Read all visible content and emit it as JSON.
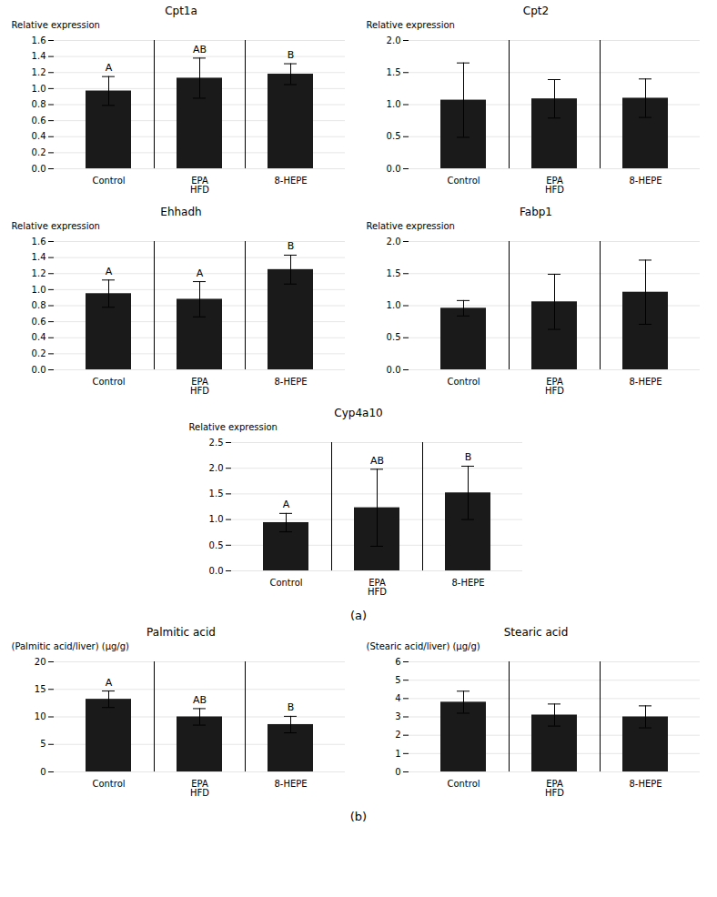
{
  "chart_data": [
    {
      "type": "bar",
      "title": "Cpt1a",
      "categories": [
        "Control",
        "EPA\nHFD",
        "8-HEPE"
      ],
      "values": [
        0.97,
        1.13,
        1.18
      ],
      "errors": [
        0.18,
        0.25,
        0.13
      ],
      "letters": [
        "A",
        "AB",
        "B"
      ],
      "ylabel": "Relative expression",
      "ylim": [
        0,
        1.6
      ],
      "yticks": [
        {
          "value": 0,
          "label": "0.0"
        },
        {
          "value": 0.2,
          "label": "0.2"
        },
        {
          "value": 0.4,
          "label": "0.4"
        },
        {
          "value": 0.6,
          "label": "0.6"
        },
        {
          "value": 0.8,
          "label": "0.8"
        },
        {
          "value": 1.0,
          "label": "1.0"
        },
        {
          "value": 1.2,
          "label": "1.2"
        },
        {
          "value": 1.4,
          "label": "1.4"
        },
        {
          "value": 1.6,
          "label": "1.6"
        }
      ],
      "grid": true,
      "color": "#1a1a1a"
    },
    {
      "type": "bar",
      "title": "Cpt2",
      "categories": [
        "Control",
        "EPA\nHFD",
        "8-HEPE"
      ],
      "values": [
        1.07,
        1.09,
        1.1
      ],
      "errors": [
        0.58,
        0.3,
        0.3
      ],
      "ylabel": "Relative expression",
      "ylim": [
        0,
        2.0
      ],
      "yticks": [
        {
          "value": 0,
          "label": "0.0"
        },
        {
          "value": 0.5,
          "label": "0.5"
        },
        {
          "value": 1.0,
          "label": "1.0"
        },
        {
          "value": 1.5,
          "label": "1.5"
        },
        {
          "value": 2.0,
          "label": "2.0"
        }
      ],
      "grid": true,
      "color": "#1a1a1a"
    },
    {
      "type": "bar",
      "title": "Ehhadh",
      "categories": [
        "Control",
        "EPA\nHFD",
        "8-HEPE"
      ],
      "values": [
        0.95,
        0.88,
        1.25
      ],
      "errors": [
        0.17,
        0.22,
        0.18
      ],
      "letters": [
        "A",
        "A",
        "B"
      ],
      "ylabel": "Relative expression",
      "ylim": [
        0,
        1.6
      ],
      "yticks": [
        {
          "value": 0,
          "label": "0.0"
        },
        {
          "value": 0.2,
          "label": "0.2"
        },
        {
          "value": 0.4,
          "label": "0.4"
        },
        {
          "value": 0.6,
          "label": "0.6"
        },
        {
          "value": 0.8,
          "label": "0.8"
        },
        {
          "value": 1.0,
          "label": "1.0"
        },
        {
          "value": 1.2,
          "label": "1.2"
        },
        {
          "value": 1.4,
          "label": "1.4"
        },
        {
          "value": 1.6,
          "label": "1.6"
        }
      ],
      "grid": true,
      "color": "#1a1a1a"
    },
    {
      "type": "bar",
      "title": "Fabp1",
      "categories": [
        "Control",
        "EPA\nHFD",
        "8-HEPE"
      ],
      "values": [
        0.96,
        1.06,
        1.21
      ],
      "errors": [
        0.12,
        0.43,
        0.5
      ],
      "ylabel": "Relative expression",
      "ylim": [
        0,
        2.0
      ],
      "yticks": [
        {
          "value": 0,
          "label": "0.0"
        },
        {
          "value": 0.5,
          "label": "0.5"
        },
        {
          "value": 1.0,
          "label": "1.0"
        },
        {
          "value": 1.5,
          "label": "1.5"
        },
        {
          "value": 2.0,
          "label": "2.0"
        }
      ],
      "grid": true,
      "color": "#1a1a1a"
    },
    {
      "type": "bar",
      "title": "Cyp4a10",
      "categories": [
        "Control",
        "EPA\nHFD",
        "8-HEPE"
      ],
      "values": [
        0.94,
        1.23,
        1.52
      ],
      "errors": [
        0.18,
        0.75,
        0.52
      ],
      "letters": [
        "A",
        "AB",
        "B"
      ],
      "ylabel": "Relative expression",
      "ylim": [
        0,
        2.5
      ],
      "yticks": [
        {
          "value": 0,
          "label": "0.0"
        },
        {
          "value": 0.5,
          "label": "0.5"
        },
        {
          "value": 1.0,
          "label": "1.0"
        },
        {
          "value": 1.5,
          "label": "1.5"
        },
        {
          "value": 2.0,
          "label": "2.0"
        },
        {
          "value": 2.5,
          "label": "2.5"
        }
      ],
      "grid": true,
      "color": "#1a1a1a",
      "annotation": "(a)"
    },
    {
      "type": "bar",
      "title": "Palmitic acid",
      "categories": [
        "Control",
        "EPA\nHFD",
        "8-HEPE"
      ],
      "values": [
        13.2,
        10.0,
        8.6
      ],
      "errors": [
        1.5,
        1.5,
        1.5
      ],
      "letters": [
        "A",
        "AB",
        "B"
      ],
      "ylabel": "(Palmitic acid/liver) (μg/g)",
      "ylim": [
        0,
        20
      ],
      "yticks": [
        0,
        5,
        10,
        15,
        20
      ],
      "grid": true,
      "color": "#1a1a1a"
    },
    {
      "type": "bar",
      "title": "Stearic acid",
      "categories": [
        "Control",
        "EPA\nHFD",
        "8-HEPE"
      ],
      "values": [
        3.8,
        3.1,
        3.0
      ],
      "errors": [
        0.6,
        0.6,
        0.6
      ],
      "ylabel": "(Stearic acid/liver) (μg/g)",
      "ylim": [
        0,
        6
      ],
      "yticks": [
        0,
        1,
        2,
        3,
        4,
        5,
        6
      ],
      "grid": true,
      "color": "#1a1a1a",
      "annotation": "(b)"
    }
  ]
}
